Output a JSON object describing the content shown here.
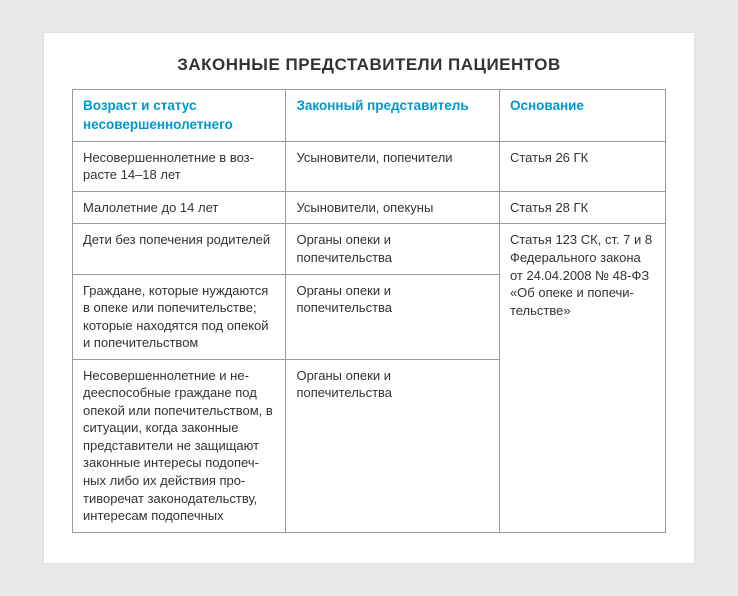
{
  "title": "ЗАКОННЫЕ ПРЕДСТАВИТЕЛИ ПАЦИЕНТОВ",
  "table": {
    "headers": {
      "col1": "Возраст и статус несовершеннолетнего",
      "col2": "Законный представитель",
      "col3": "Основание"
    },
    "rows": {
      "r1": {
        "c1": "Несовершеннолетние в воз­расте 14–18 лет",
        "c2": "Усыновители, попечители",
        "c3": "Статья 26 ГК"
      },
      "r2": {
        "c1": "Малолетние до 14 лет",
        "c2": "Усыновители, опекуны",
        "c3": "Статья 28 ГК"
      },
      "r3": {
        "c1": "Дети без попечения роди­телей",
        "c2": "Органы опеки и попечительства",
        "c3": "Статья 123 СК, ст. 7 и 8 Федерального закона от 24.04.2008 № 48-ФЗ «Об опеке и попечи­тельстве»"
      },
      "r4": {
        "c1": "Граждане, которые нуждают­ся в опеке или попечитель­стве; которые находятся под опекой и попечительством",
        "c2": "Органы опеки и попечительства"
      },
      "r5": {
        "c1": "Несовершеннолетние и не­дееспособные граждане под опекой или попечительством, в ситуации, когда законные представители не защищают законные интересы подопеч­ных либо их действия про­тиворечат законодательству, интересам подопечных",
        "c2": "Органы опеки и попечительства"
      }
    }
  },
  "colors": {
    "header_text": "#0099cc",
    "body_text": "#333333",
    "border": "#9a9a9a",
    "page_bg": "#ffffff",
    "outer_bg": "#e8e8e8"
  }
}
